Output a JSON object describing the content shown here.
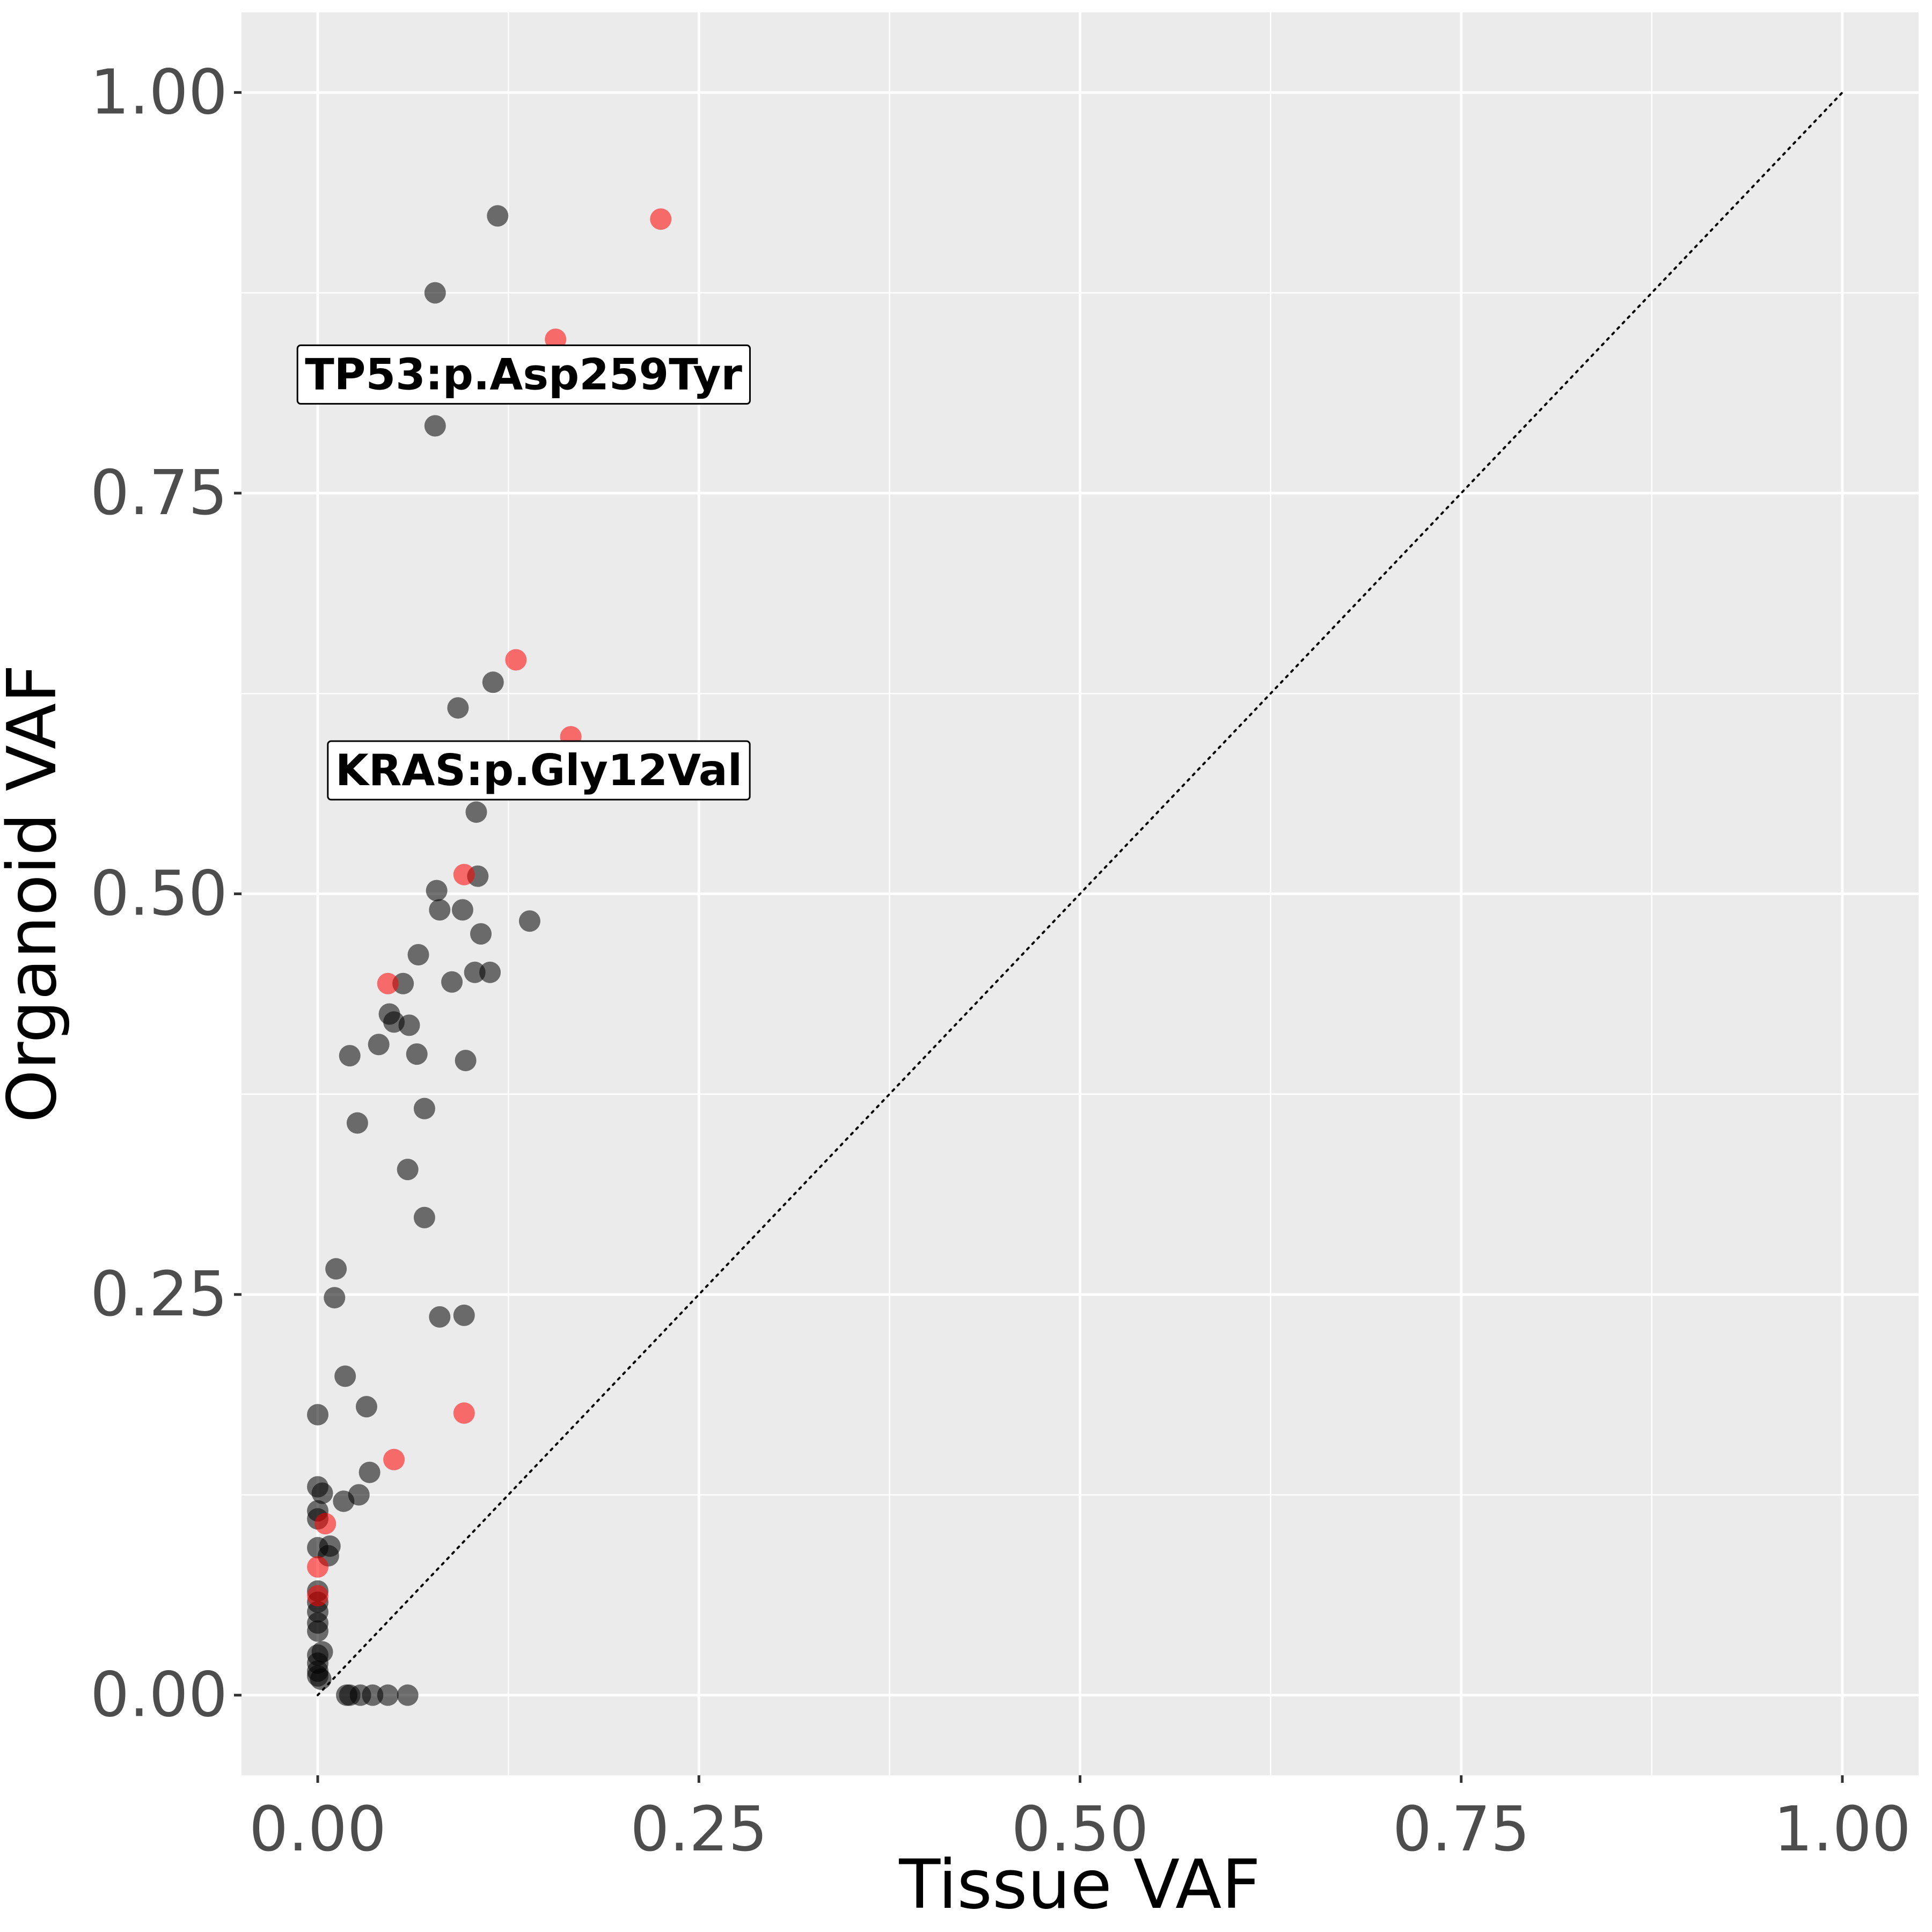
{
  "chart_data": {
    "type": "scatter",
    "title": "",
    "xlabel": "Tissue VAF",
    "ylabel": "Organoid VAF",
    "xlim": [
      -0.05,
      1.05
    ],
    "ylim": [
      -0.05,
      1.05
    ],
    "x_ticks": [
      0,
      0.25,
      0.5,
      0.75,
      1
    ],
    "x_tick_labels": [
      "0.00",
      "0.25",
      "0.50",
      "0.75",
      "1.00"
    ],
    "y_ticks": [
      0,
      0.25,
      0.5,
      0.75,
      1
    ],
    "y_tick_labels": [
      "0.00",
      "0.25",
      "0.50",
      "0.75",
      "1.00"
    ],
    "grid": true,
    "reference_line": {
      "type": "identity",
      "from": [
        0,
        0
      ],
      "to": [
        1,
        1
      ],
      "style": "dotted"
    },
    "colors": {
      "panel": "#ebebeb",
      "grid": "#ffffff",
      "black_series": "#000000",
      "red_series": "#ff0000"
    },
    "series": [
      {
        "name": "black",
        "color": "#000000",
        "opacity": 0.55,
        "points": [
          [
            0.118,
            0.923
          ],
          [
            0.077,
            0.875
          ],
          [
            0.077,
            0.792
          ],
          [
            0.115,
            0.632
          ],
          [
            0.092,
            0.616
          ],
          [
            0.104,
            0.551
          ],
          [
            0.078,
            0.502
          ],
          [
            0.105,
            0.511
          ],
          [
            0.08,
            0.49
          ],
          [
            0.095,
            0.49
          ],
          [
            0.107,
            0.475
          ],
          [
            0.139,
            0.483
          ],
          [
            0.066,
            0.462
          ],
          [
            0.056,
            0.444
          ],
          [
            0.088,
            0.445
          ],
          [
            0.103,
            0.451
          ],
          [
            0.113,
            0.451
          ],
          [
            0.047,
            0.425
          ],
          [
            0.05,
            0.42
          ],
          [
            0.06,
            0.418
          ],
          [
            0.04,
            0.406
          ],
          [
            0.021,
            0.399
          ],
          [
            0.065,
            0.4
          ],
          [
            0.097,
            0.396
          ],
          [
            0.07,
            0.366
          ],
          [
            0.026,
            0.357
          ],
          [
            0.059,
            0.328
          ],
          [
            0.07,
            0.298
          ],
          [
            0.012,
            0.266
          ],
          [
            0.011,
            0.248
          ],
          [
            0.08,
            0.236
          ],
          [
            0.096,
            0.237
          ],
          [
            0.018,
            0.199
          ],
          [
            0.032,
            0.18
          ],
          [
            0.0,
            0.175
          ],
          [
            0.034,
            0.139
          ],
          [
            0.0,
            0.13
          ],
          [
            0.003,
            0.126
          ],
          [
            0.017,
            0.121
          ],
          [
            0.027,
            0.125
          ],
          [
            0.0,
            0.115
          ],
          [
            0.0,
            0.11
          ],
          [
            0.008,
            0.093
          ],
          [
            0.0,
            0.092
          ],
          [
            0.007,
            0.087
          ],
          [
            0.0,
            0.065
          ],
          [
            0.0,
            0.058
          ],
          [
            0.0,
            0.052
          ],
          [
            0.0,
            0.045
          ],
          [
            0.0,
            0.04
          ],
          [
            0.003,
            0.027
          ],
          [
            0.0,
            0.025
          ],
          [
            0.0,
            0.02
          ],
          [
            0.0,
            0.015
          ],
          [
            0.0,
            0.012
          ],
          [
            0.002,
            0.01
          ],
          [
            0.019,
            0.0
          ],
          [
            0.021,
            0.0
          ],
          [
            0.028,
            0.0
          ],
          [
            0.036,
            0.0
          ],
          [
            0.046,
            0.0
          ],
          [
            0.059,
            0.0
          ]
        ]
      },
      {
        "name": "red",
        "color": "#ff0000",
        "opacity": 0.55,
        "points": [
          [
            0.225,
            0.921
          ],
          [
            0.156,
            0.846
          ],
          [
            0.13,
            0.646
          ],
          [
            0.166,
            0.598
          ],
          [
            0.096,
            0.512
          ],
          [
            0.046,
            0.444
          ],
          [
            0.096,
            0.176
          ],
          [
            0.05,
            0.147
          ],
          [
            0.005,
            0.107
          ],
          [
            0.0,
            0.08
          ],
          [
            0.0,
            0.062
          ]
        ]
      }
    ],
    "annotations": [
      {
        "label": "TP53:p.Asp259Tyr",
        "x": 0.135,
        "y": 0.824
      },
      {
        "label": "KRAS:p.Gly12Val",
        "x": 0.145,
        "y": 0.577
      }
    ]
  }
}
